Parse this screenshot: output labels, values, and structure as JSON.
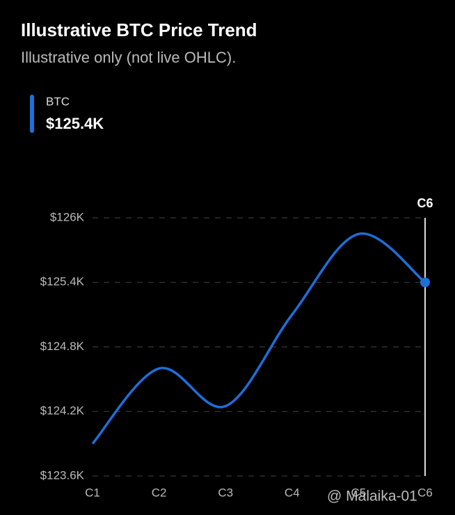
{
  "chart_data": {
    "type": "line",
    "title": "Illustrative BTC Price Trend",
    "subtitle": "Illustrative only (not live OHLC).",
    "categories": [
      "C1",
      "C2",
      "C3",
      "C4",
      "C5",
      "C6"
    ],
    "series": [
      {
        "name": "BTC",
        "color": "#1e6fd9",
        "values": [
          123900,
          124600,
          124250,
          125100,
          125850,
          125400
        ],
        "value_labels": [
          null,
          null,
          null,
          null,
          null,
          "$125.4K"
        ]
      }
    ],
    "highlight_category": "C6",
    "ylim": [
      123600,
      126000
    ],
    "yticks": [
      {
        "value": 123600,
        "label": "$123.6K"
      },
      {
        "value": 124200,
        "label": "$124.2K"
      },
      {
        "value": 124800,
        "label": "$124.8K"
      },
      {
        "value": 125400,
        "label": "$125.4K"
      },
      {
        "value": 126000,
        "label": "$126K"
      }
    ],
    "grid": true,
    "watermark": "@ Malaika-01"
  }
}
